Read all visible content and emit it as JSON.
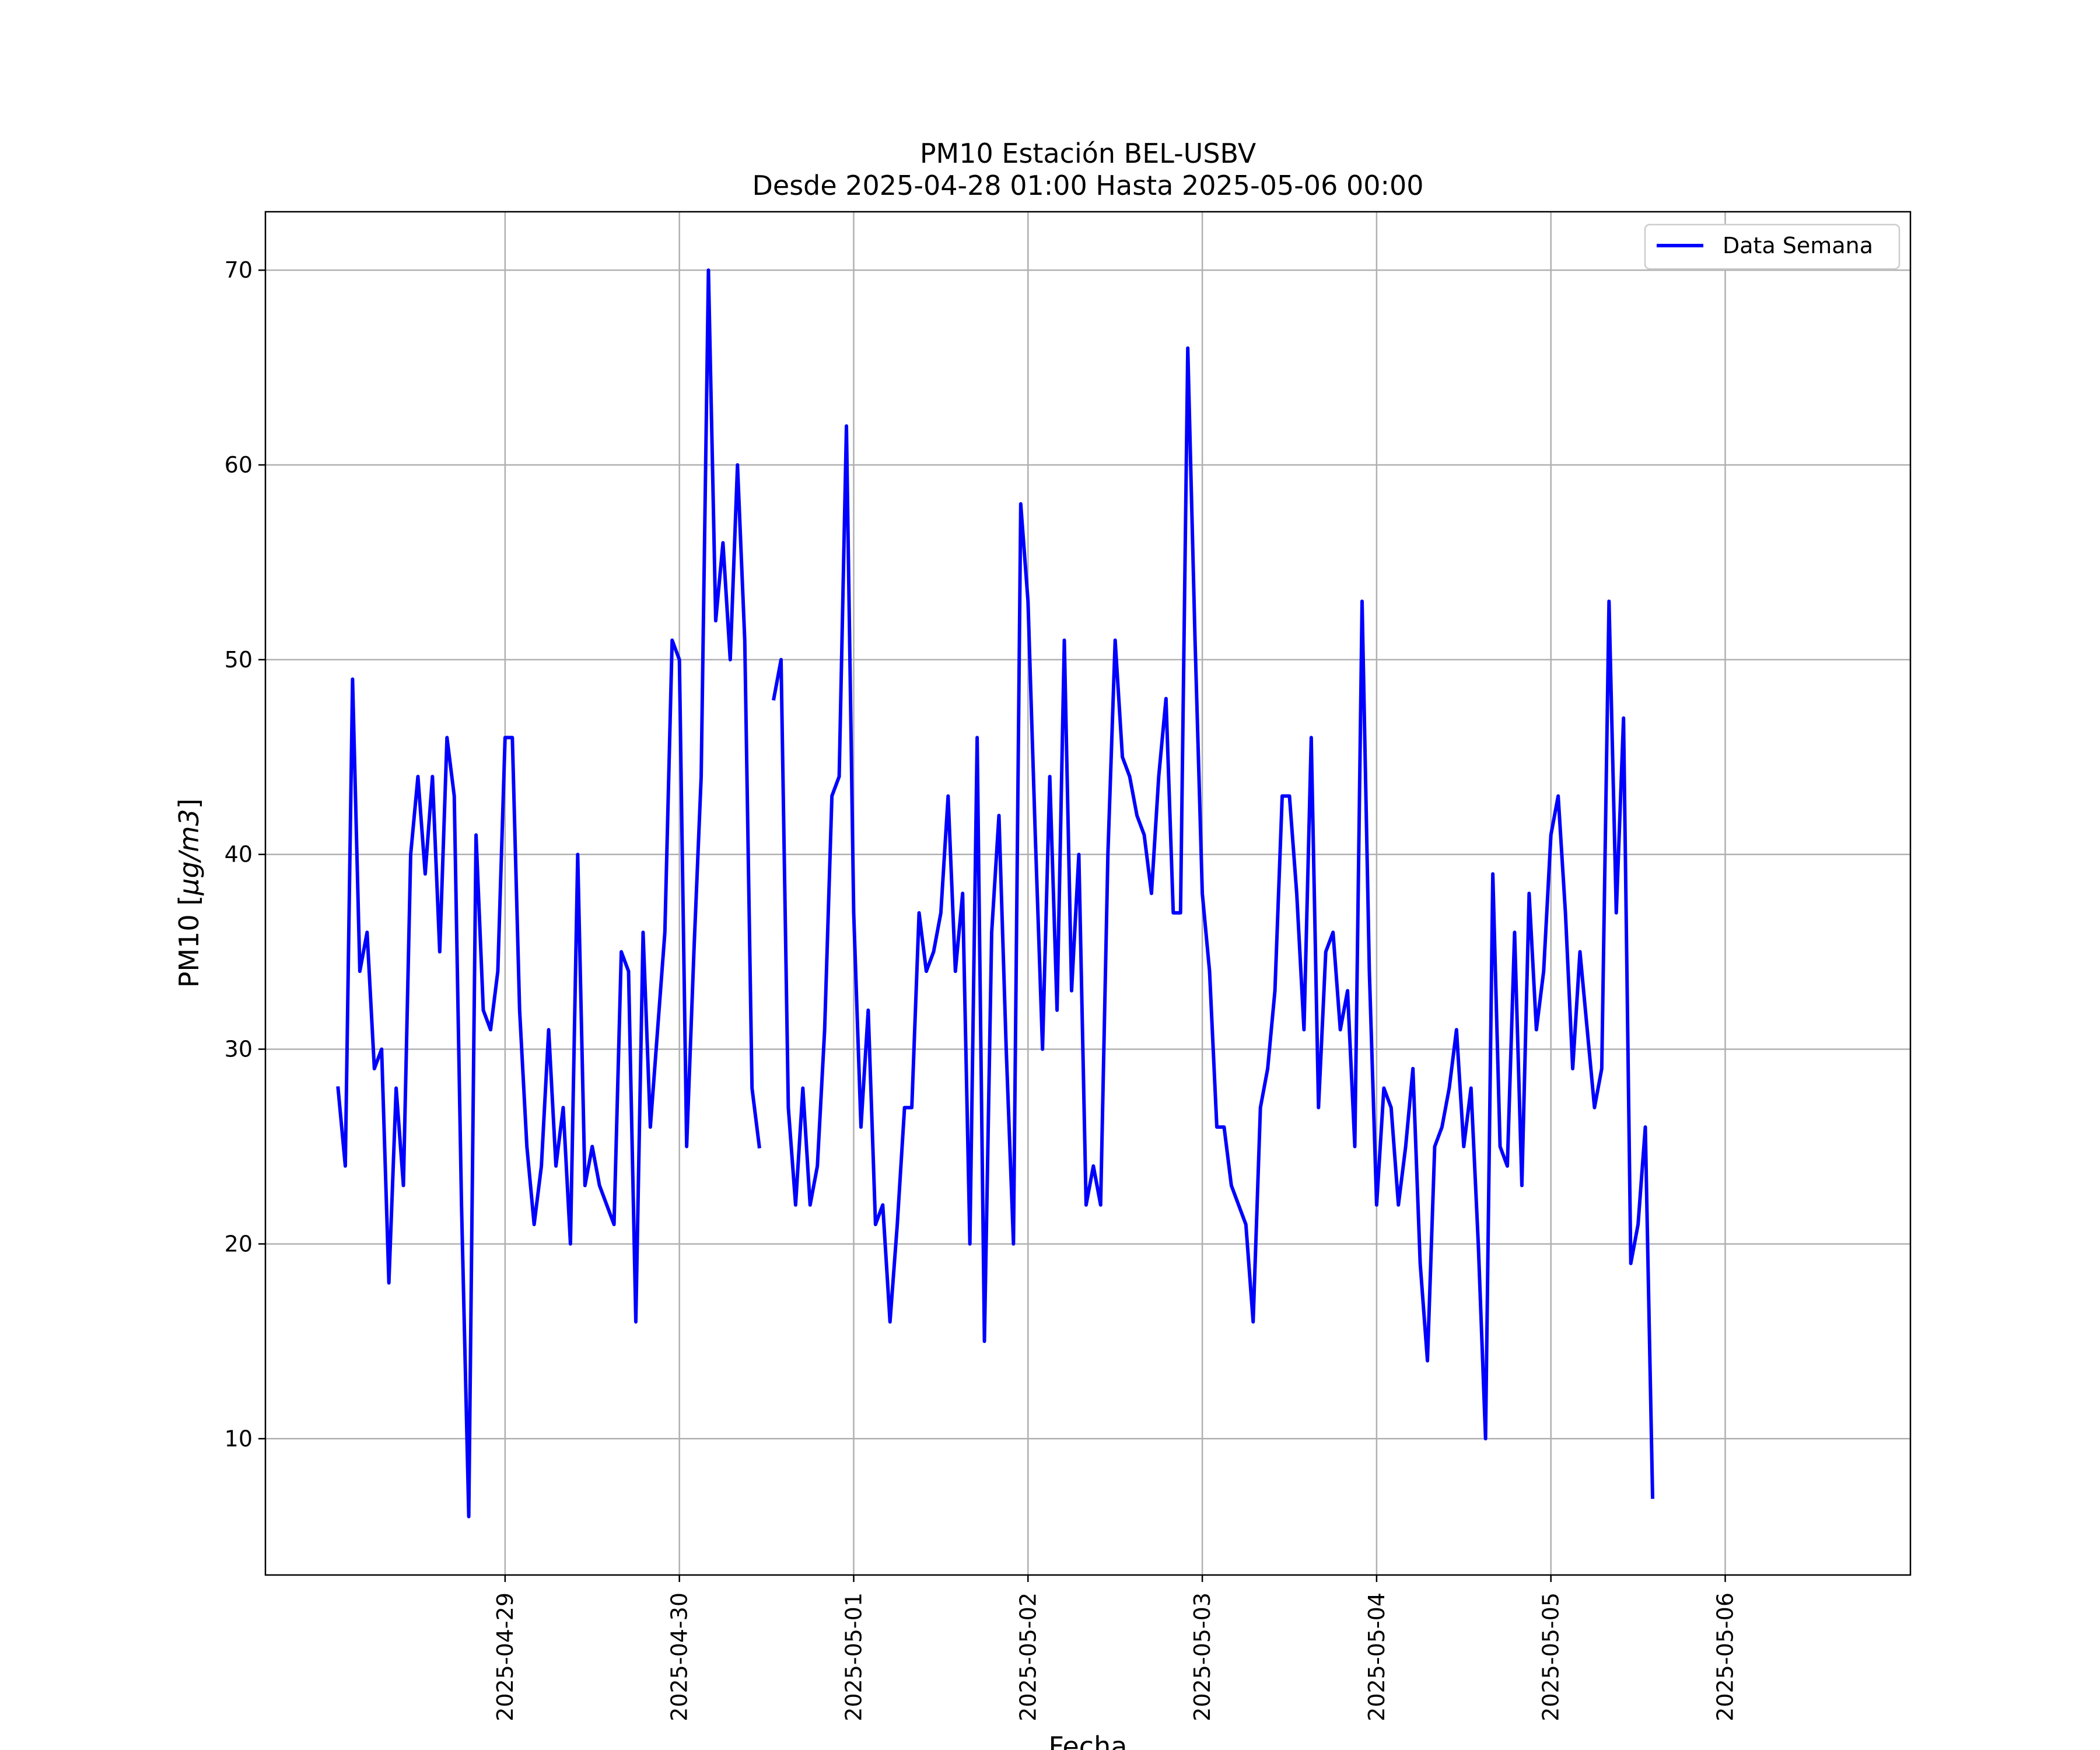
{
  "chart_data": {
    "type": "line",
    "title": "PM10 Estación BEL-USBV",
    "subtitle": "Desde 2025-04-28 01:00 Hasta 2025-05-06 00:00",
    "xlabel": "Fecha",
    "ylabel_prefix": "PM10 [",
    "ylabel_math": "μg/m3",
    "ylabel_suffix": "]",
    "x_range": [
      "2025-04-28 00:00",
      "2025-05-06 01:00"
    ],
    "xlim_hours": [
      -9.0,
      217.5
    ],
    "ylim": [
      3,
      73
    ],
    "y_ticks": [
      10,
      20,
      30,
      40,
      50,
      60,
      70
    ],
    "x_ticks": [
      "2025-04-29",
      "2025-04-30",
      "2025-05-01",
      "2025-05-02",
      "2025-05-03",
      "2025-05-04",
      "2025-05-05",
      "2025-05-06"
    ],
    "grid": true,
    "legend_position": "top-right",
    "series": [
      {
        "name": "Data Semana",
        "color": "#0000ff",
        "x_start": "2025-04-28 01:00",
        "x_step_hours": 1,
        "values": [
          28,
          24,
          49,
          34,
          36,
          29,
          30,
          18,
          28,
          23,
          40,
          44,
          39,
          44,
          35,
          46,
          43,
          22,
          6,
          41,
          32,
          31,
          34,
          46,
          46,
          32,
          25,
          21,
          24,
          31,
          24,
          27,
          20,
          40,
          23,
          25,
          23,
          22,
          21,
          35,
          34,
          16,
          36,
          26,
          31,
          36,
          51,
          50,
          25,
          35,
          44,
          70,
          52,
          56,
          50,
          60,
          51,
          28,
          25,
          null,
          48,
          50,
          27,
          22,
          28,
          22,
          24,
          31,
          43,
          44,
          62,
          37,
          26,
          32,
          21,
          22,
          16,
          21,
          27,
          27,
          37,
          34,
          35,
          37,
          43,
          34,
          38,
          20,
          46,
          15,
          36,
          42,
          30,
          20,
          58,
          53,
          41,
          30,
          44,
          32,
          51,
          33,
          40,
          22,
          24,
          22,
          40,
          51,
          45,
          44,
          42,
          41,
          38,
          44,
          48,
          37,
          37,
          66,
          51,
          38,
          34,
          26,
          26,
          23,
          22,
          21,
          16,
          27,
          29,
          33,
          43,
          43,
          38,
          31,
          46,
          27,
          35,
          36,
          31,
          33,
          25,
          53,
          34,
          22,
          28,
          27,
          22,
          25,
          29,
          19,
          14,
          25,
          26,
          28,
          31,
          25,
          28,
          20,
          10,
          39,
          25,
          24,
          36,
          23,
          38,
          31,
          34,
          41,
          43,
          37,
          29,
          35,
          31,
          27,
          29,
          53,
          37,
          47,
          19,
          21,
          26,
          7
        ]
      }
    ]
  }
}
